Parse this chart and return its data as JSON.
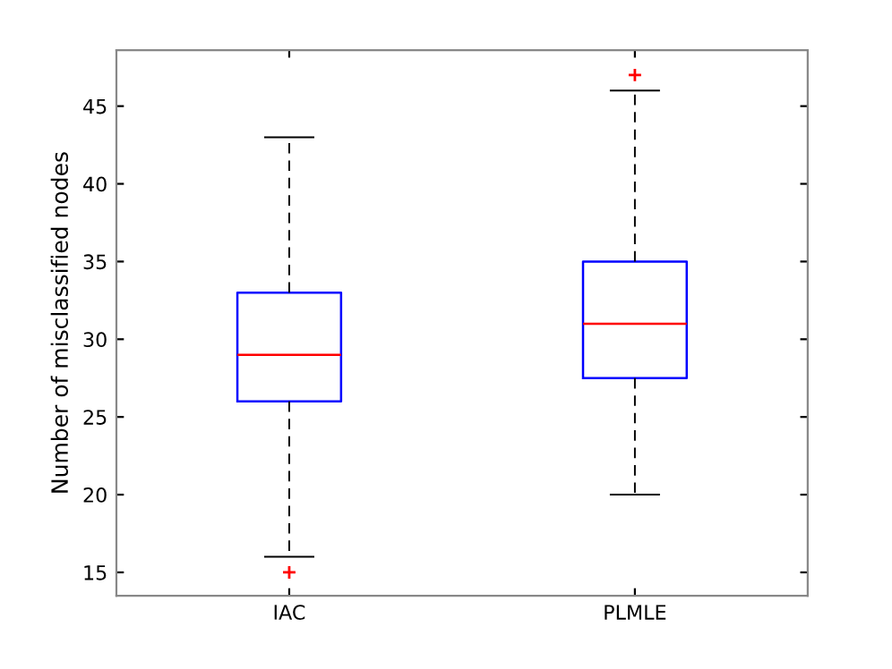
{
  "chart_data": {
    "type": "box",
    "ylabel": "Number of misclassified nodes",
    "categories": [
      "IAC",
      "PLMLE"
    ],
    "boxes": [
      {
        "low": 16,
        "q1": 26,
        "median": 29,
        "q3": 33,
        "high": 43,
        "outliers": [
          15
        ]
      },
      {
        "low": 20,
        "q1": 27.5,
        "median": 31,
        "q3": 35,
        "high": 46,
        "outliers": [
          47
        ]
      }
    ],
    "color": "#0000ff",
    "ylim": [
      13.5,
      48.6
    ],
    "yticks": [
      15,
      20,
      25,
      30,
      35,
      40,
      45
    ],
    "grid": false,
    "marker": "cross",
    "line_style": "dashed"
  }
}
